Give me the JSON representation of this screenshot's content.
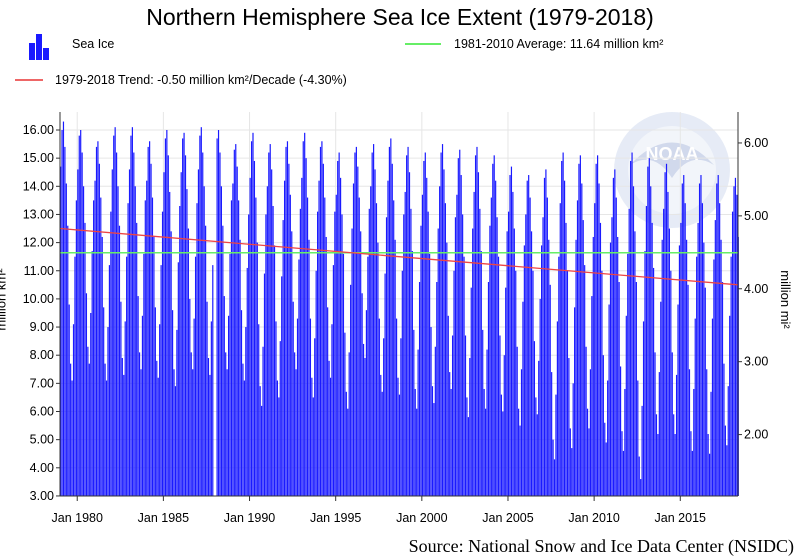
{
  "chart_data": {
    "type": "bar",
    "title": "Northern Hemisphere Sea Ice Extent (1979-2018)",
    "ylabel": "million km²",
    "y2label": "million mi²",
    "source": "Source: National Snow and Ice Data Center (NSIDC)",
    "logo_text": "NOAA",
    "ylim": [
      3,
      16.4
    ],
    "y2lim_units": "million mi²",
    "y_ticks": [
      "3.00",
      "4.00",
      "5.00",
      "6.00",
      "7.00",
      "8.00",
      "9.00",
      "10.00",
      "11.00",
      "12.00",
      "13.00",
      "14.00",
      "15.00",
      "16.00"
    ],
    "y2_ticks": [
      "2.00",
      "3.00",
      "4.00",
      "5.00",
      "6.00"
    ],
    "x_ticks": [
      "Jan 1980",
      "Jan 1985",
      "Jan 1990",
      "Jan 1995",
      "Jan 2000",
      "Jan 2005",
      "Jan 2010",
      "Jan 2015"
    ],
    "grid": true,
    "legend": {
      "placement": "top",
      "bars": {
        "label": "Sea Ice",
        "color": "#1a1aff"
      },
      "average": {
        "label": "1981-2010 Average: 11.64 million km²",
        "color": "#66ee66",
        "value": 11.64
      },
      "trend": {
        "label": "1979-2018 Trend: -0.50 million km²/Decade (-4.30%)",
        "color": "#ee4444",
        "start": 12.5,
        "end": 10.5
      }
    },
    "series_name": "Sea Ice",
    "monthly_values_by_year": {
      "1979": [
        14.7,
        16.0,
        16.3,
        15.4,
        14.1,
        12.6,
        9.8,
        7.7,
        7.1,
        9.1,
        11.5,
        13.5
      ],
      "1980": [
        14.6,
        15.8,
        16.0,
        15.2,
        14.0,
        12.7,
        10.2,
        8.3,
        7.7,
        9.5,
        11.7,
        13.5
      ],
      "1981": [
        14.2,
        15.4,
        15.6,
        14.8,
        13.6,
        12.2,
        9.7,
        7.7,
        7.1,
        9.0,
        11.2,
        13.1
      ],
      "1982": [
        14.6,
        15.8,
        16.1,
        15.2,
        14.0,
        12.6,
        9.9,
        7.9,
        7.3,
        9.2,
        11.5,
        13.4
      ],
      "1983": [
        14.6,
        15.8,
        16.1,
        15.2,
        14.0,
        12.7,
        10.1,
        8.1,
        7.5,
        9.4,
        11.6,
        13.5
      ],
      "1984": [
        14.2,
        15.4,
        15.6,
        14.8,
        13.6,
        12.2,
        9.7,
        7.8,
        7.2,
        9.1,
        11.2,
        13.1
      ],
      "1985": [
        14.5,
        15.7,
        16.0,
        15.1,
        13.8,
        12.4,
        9.6,
        7.5,
        6.9,
        8.9,
        11.3,
        13.3
      ],
      "1986": [
        14.5,
        15.7,
        15.9,
        15.1,
        13.9,
        12.5,
        10.0,
        8.1,
        7.5,
        9.3,
        11.5,
        13.4
      ],
      "1987": [
        14.6,
        15.8,
        16.1,
        15.2,
        14.0,
        12.6,
        9.9,
        7.9,
        7.3,
        9.2,
        11.2,
        null
      ],
      "1988": [
        null,
        15.7,
        16.0,
        15.2,
        14.0,
        12.6,
        10.1,
        8.1,
        7.5,
        9.4,
        11.6,
        13.5
      ],
      "1989": [
        14.1,
        15.3,
        15.5,
        14.7,
        13.5,
        12.1,
        9.6,
        7.7,
        7.1,
        9.0,
        11.1,
        13.0
      ],
      "1990": [
        14.3,
        15.6,
        15.9,
        14.9,
        13.6,
        12.0,
        9.1,
        6.9,
        6.2,
        8.3,
        10.9,
        13.0
      ],
      "1991": [
        14.0,
        15.2,
        15.5,
        14.6,
        13.3,
        11.9,
        9.2,
        7.1,
        6.5,
        8.5,
        10.8,
        12.8
      ],
      "1992": [
        14.2,
        15.4,
        15.6,
        14.8,
        13.7,
        12.4,
        9.9,
        8.1,
        7.5,
        9.3,
        11.4,
        13.2
      ],
      "1993": [
        14.3,
        15.6,
        15.9,
        15.0,
        13.6,
        12.1,
        9.3,
        7.2,
        6.5,
        8.6,
        11.0,
        13.1
      ],
      "1994": [
        14.2,
        15.4,
        15.6,
        14.8,
        13.6,
        12.2,
        9.7,
        7.8,
        7.2,
        9.1,
        11.2,
        13.1
      ],
      "1995": [
        13.7,
        14.9,
        15.2,
        14.3,
        13.0,
        11.6,
        8.8,
        6.7,
        6.1,
        8.1,
        10.5,
        12.5
      ],
      "1996": [
        14.1,
        15.2,
        15.4,
        14.7,
        13.6,
        12.4,
        10.2,
        8.4,
        7.9,
        9.6,
        11.5,
        13.2
      ],
      "1997": [
        14.0,
        15.2,
        15.5,
        14.6,
        13.4,
        12.0,
        9.3,
        7.3,
        6.7,
        8.6,
        10.9,
        12.9
      ],
      "1998": [
        14.2,
        15.4,
        15.7,
        14.8,
        13.5,
        12.1,
        9.3,
        7.2,
        6.6,
        8.6,
        11.0,
        13.0
      ],
      "1999": [
        13.8,
        15.1,
        15.4,
        14.5,
        13.2,
        11.7,
        8.9,
        6.8,
        6.1,
        8.2,
        10.6,
        12.6
      ],
      "2000": [
        13.7,
        14.9,
        15.2,
        14.3,
        13.1,
        11.6,
        9.0,
        6.9,
        6.3,
        8.3,
        10.6,
        12.5
      ],
      "2001": [
        14.0,
        15.2,
        15.5,
        14.6,
        13.4,
        12.0,
        9.4,
        7.4,
        6.8,
        8.7,
        11.0,
        12.9
      ],
      "2002": [
        13.7,
        15.0,
        15.3,
        14.4,
        13.0,
        11.5,
        8.7,
        6.5,
        5.8,
        7.9,
        10.4,
        12.5
      ],
      "2003": [
        13.8,
        15.1,
        15.4,
        14.5,
        13.2,
        11.7,
        8.9,
        6.8,
        6.1,
        8.2,
        10.6,
        12.6
      ],
      "2004": [
        13.6,
        14.8,
        15.1,
        14.2,
        12.9,
        11.5,
        8.7,
        6.6,
        6.0,
        8.0,
        10.4,
        12.4
      ],
      "2005": [
        13.1,
        14.4,
        14.7,
        13.8,
        12.5,
        11.0,
        8.3,
        6.1,
        5.5,
        7.5,
        9.9,
        11.9
      ],
      "2006": [
        13.0,
        14.2,
        14.4,
        13.6,
        12.4,
        11.0,
        8.5,
        6.5,
        5.9,
        7.8,
        10.0,
        11.9
      ],
      "2007": [
        12.9,
        14.3,
        14.6,
        13.6,
        12.1,
        10.5,
        7.4,
        5.0,
        4.3,
        6.6,
        9.2,
        11.5
      ],
      "2008": [
        13.4,
        14.9,
        15.2,
        14.2,
        12.7,
        11.0,
        7.9,
        5.4,
        4.7,
        7.0,
        9.7,
        12.1
      ],
      "2009": [
        13.5,
        14.8,
        15.1,
        14.1,
        12.8,
        11.2,
        8.3,
        6.1,
        5.4,
        7.5,
        10.1,
        12.2
      ],
      "2010": [
        13.4,
        14.8,
        15.1,
        14.1,
        12.7,
        11.0,
        8.0,
        5.6,
        4.9,
        7.1,
        9.8,
        12.0
      ],
      "2011": [
        12.9,
        14.3,
        14.6,
        13.6,
        12.2,
        10.6,
        7.6,
        5.3,
        4.6,
        6.8,
        9.4,
        11.6
      ],
      "2012": [
        13.2,
        14.9,
        15.2,
        14.0,
        12.4,
        10.6,
        7.1,
        4.4,
        3.6,
        6.2,
        9.2,
        11.7
      ],
      "2013": [
        13.3,
        14.7,
        15.0,
        14.0,
        12.7,
        11.1,
        8.1,
        5.9,
        5.2,
        7.4,
        9.9,
        12.1
      ],
      "2014": [
        13.2,
        14.5,
        14.8,
        13.8,
        12.5,
        11.0,
        8.1,
        5.9,
        5.2,
        7.3,
        9.8,
        11.9
      ],
      "2015": [
        12.7,
        14.1,
        14.4,
        13.4,
        12.1,
        10.5,
        7.5,
        5.3,
        4.6,
        6.8,
        9.3,
        11.5
      ],
      "2016": [
        12.7,
        14.1,
        14.4,
        13.4,
        12.0,
        10.4,
        7.5,
        5.2,
        4.5,
        6.7,
        9.3,
        11.4
      ],
      "2017": [
        12.8,
        14.1,
        14.4,
        13.4,
        12.1,
        10.6,
        7.7,
        5.5,
        4.8,
        6.9,
        9.4,
        11.5
      ],
      "2018": [
        13.1,
        14.0,
        14.3,
        13.7,
        12.2
      ]
    }
  }
}
